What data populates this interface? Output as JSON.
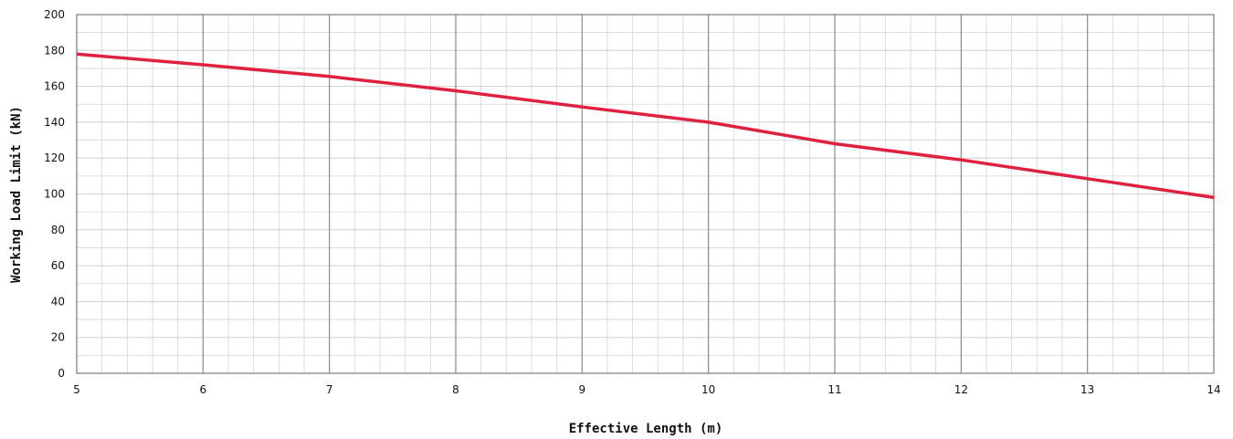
{
  "chart_data": {
    "type": "line",
    "title": "",
    "xlabel": "Effective Length (m)",
    "ylabel": "Working Load Limit (kN)",
    "xlim": [
      5,
      14
    ],
    "ylim": [
      0,
      200
    ],
    "x_ticks": [
      5,
      6,
      7,
      8,
      9,
      10,
      11,
      12,
      13,
      14
    ],
    "y_ticks": [
      0,
      20,
      40,
      60,
      80,
      100,
      120,
      140,
      160,
      180,
      200
    ],
    "grid": true,
    "legend": "none",
    "series": [
      {
        "color": "#e0203f",
        "x": [
          5,
          6,
          7,
          8,
          9,
          10,
          11,
          12,
          13,
          14
        ],
        "y": [
          178,
          172,
          165.5,
          157.5,
          148.5,
          140,
          128,
          119,
          108.5,
          98
        ]
      }
    ]
  }
}
